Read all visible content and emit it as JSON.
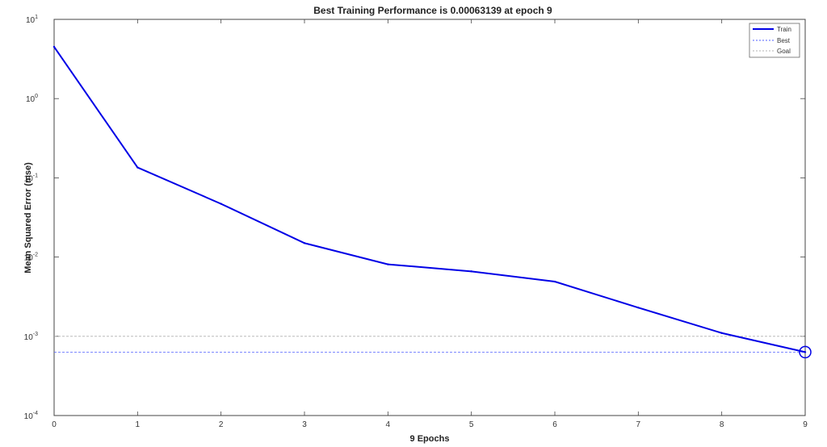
{
  "chart_data": {
    "type": "line",
    "title": "Best Training Performance is 0.00063139 at epoch 9",
    "xlabel": "9 Epochs",
    "ylabel": "Mean Squared Error  (mse)",
    "x": [
      0,
      1,
      2,
      3,
      4,
      5,
      6,
      7,
      8,
      9
    ],
    "xlim": [
      0,
      9
    ],
    "ylim": [
      0.0001,
      10
    ],
    "yscale": "log",
    "xticks": [
      "0",
      "1",
      "2",
      "3",
      "4",
      "5",
      "6",
      "7",
      "8",
      "9"
    ],
    "yticks": [
      {
        "base": "10",
        "exp": "1"
      },
      {
        "base": "10",
        "exp": "0"
      },
      {
        "base": "10",
        "exp": "-1"
      },
      {
        "base": "10",
        "exp": "-2"
      },
      {
        "base": "10",
        "exp": "-3"
      },
      {
        "base": "10",
        "exp": "-4"
      }
    ],
    "series": [
      {
        "name": "Train",
        "color": "#0000e6",
        "values": [
          4.5,
          0.135,
          0.047,
          0.015,
          0.0081,
          0.0066,
          0.0049,
          0.0023,
          0.0011,
          0.00063139
        ]
      }
    ],
    "best": {
      "name": "Best",
      "value": 0.00063139,
      "epoch": 9,
      "color": "#5060ff"
    },
    "goal": {
      "name": "Goal",
      "value": 0.001,
      "color": "#b0b0b0"
    },
    "legend": [
      "Train",
      "Best",
      "Goal"
    ],
    "legend_position": "top-right",
    "grid": false
  }
}
